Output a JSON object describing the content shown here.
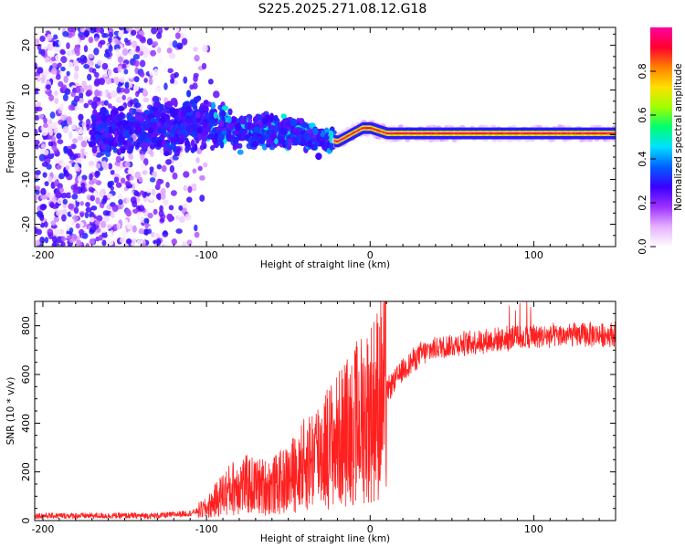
{
  "title": "S225.2025.271.08.12.G18",
  "chart_data": [
    {
      "type": "heatmap",
      "xlabel": "Height of straight line (km)",
      "ylabel": "Frequency (Hz)",
      "xlim": [
        -205,
        150
      ],
      "ylim": [
        -25,
        24
      ],
      "xticks": [
        -200,
        -100,
        0,
        100
      ],
      "yticks": [
        -20,
        -10,
        0,
        10,
        20
      ],
      "colorbar": {
        "label": "Normalized spectral amplitude",
        "range": [
          0,
          1
        ],
        "ticks": [
          "0.0",
          "0.2",
          "0.4",
          "0.6",
          "0.8"
        ],
        "stops": [
          "#ffffff",
          "#e6b0ff",
          "#9b30ff",
          "#3a00ff",
          "#0060ff",
          "#00e0ff",
          "#00ff70",
          "#a0ff00",
          "#ffe000",
          "#ff8000",
          "#ff0030",
          "#ff00a0"
        ]
      },
      "center_track": [
        [
          -205,
          0
        ],
        [
          -150,
          1
        ],
        [
          -100,
          3
        ],
        [
          -80,
          1
        ],
        [
          -60,
          1
        ],
        [
          -40,
          0
        ],
        [
          -30,
          -1
        ],
        [
          -20,
          -1.5
        ],
        [
          -10,
          0.5
        ],
        [
          -5,
          1.5
        ],
        [
          0,
          1.5
        ],
        [
          10,
          0.3
        ],
        [
          150,
          0.3
        ]
      ]
    },
    {
      "type": "line",
      "xlabel": "Height of straight line (km)",
      "ylabel": "SNR (10 * v/v)",
      "xlim": [
        -205,
        150
      ],
      "ylim": [
        0,
        900
      ],
      "xticks": [
        -200,
        -100,
        0,
        100
      ],
      "yticks": [
        0,
        200,
        400,
        600,
        800
      ],
      "color": "#ff2020",
      "envelope": [
        [
          -205,
          20
        ],
        [
          -130,
          20
        ],
        [
          -110,
          30
        ],
        [
          -100,
          50
        ],
        [
          -90,
          110
        ],
        [
          -80,
          150
        ],
        [
          -70,
          140
        ],
        [
          -60,
          140
        ],
        [
          -50,
          170
        ],
        [
          -40,
          230
        ],
        [
          -30,
          290
        ],
        [
          -20,
          330
        ],
        [
          -10,
          390
        ],
        [
          0,
          450
        ],
        [
          10,
          530
        ],
        [
          20,
          620
        ],
        [
          30,
          680
        ],
        [
          40,
          710
        ],
        [
          60,
          730
        ],
        [
          80,
          745
        ],
        [
          100,
          755
        ],
        [
          120,
          760
        ],
        [
          150,
          765
        ]
      ]
    }
  ]
}
